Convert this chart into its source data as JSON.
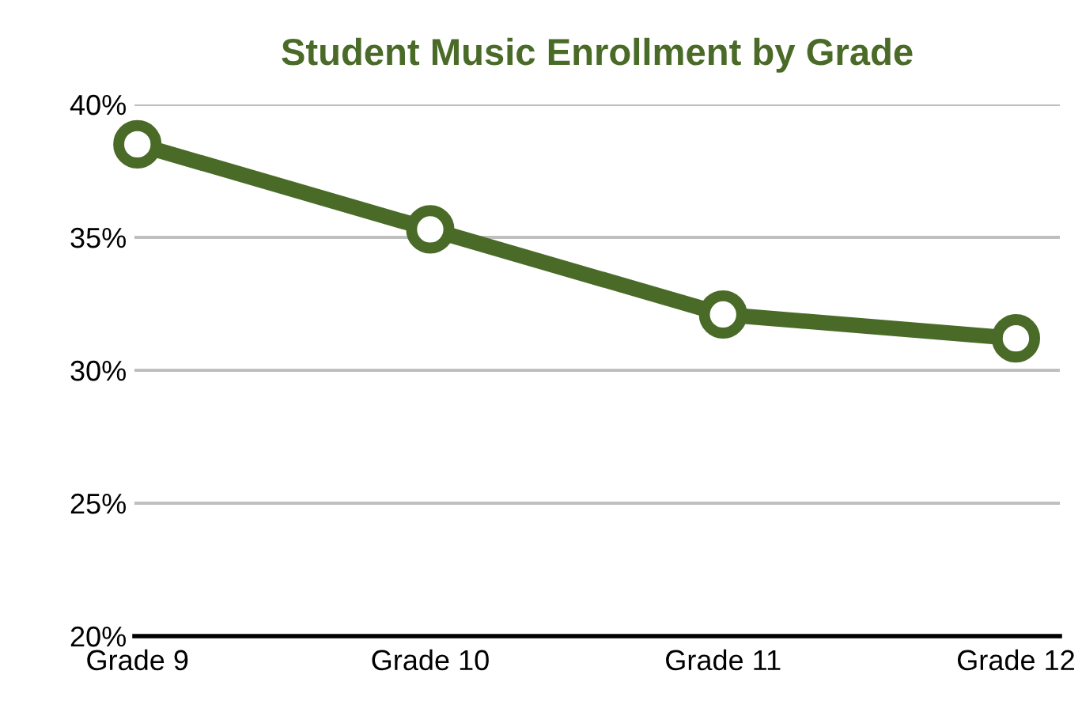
{
  "chart_data": {
    "type": "line",
    "title": "Student Music Enrollment by Grade",
    "categories": [
      "Grade 9",
      "Grade 10",
      "Grade 11",
      "Grade 12"
    ],
    "series": [
      {
        "color": "#4a6b28",
        "values": [
          38.5,
          35.3,
          32.1,
          31.2
        ]
      }
    ],
    "ylim": [
      20,
      40
    ],
    "yticks": [
      {
        "value": 20,
        "label": "20%"
      },
      {
        "value": 25,
        "label": "25%"
      },
      {
        "value": 30,
        "label": "30%"
      },
      {
        "value": 35,
        "label": "35%"
      },
      {
        "value": 40,
        "label": "40%"
      }
    ],
    "grid": "y",
    "marker": "circle",
    "line_style": "solid"
  }
}
